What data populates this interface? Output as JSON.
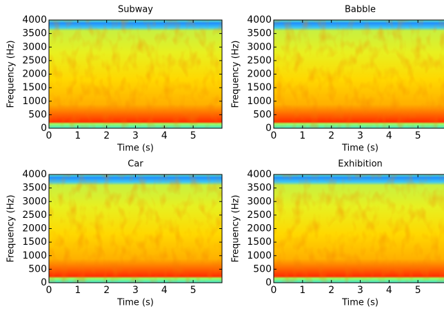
{
  "chart_data": [
    {
      "type": "spectrogram",
      "title": "Subway",
      "x_label": "Time (s)",
      "y_label": "Frequency (Hz)",
      "xlim": [
        0,
        6
      ],
      "ylim": [
        0,
        4000
      ],
      "xticks": [
        0,
        1,
        2,
        3,
        4,
        5
      ],
      "yticks": [
        0,
        500,
        1000,
        1500,
        2000,
        2500,
        3000,
        3500,
        4000
      ]
    },
    {
      "type": "spectrogram",
      "title": "Babble",
      "x_label": "Time (s)",
      "y_label": "Frequency (Hz)",
      "xlim": [
        0,
        6
      ],
      "ylim": [
        0,
        4000
      ],
      "xticks": [
        0,
        1,
        2,
        3,
        4,
        5
      ],
      "yticks": [
        0,
        500,
        1000,
        1500,
        2000,
        2500,
        3000,
        3500,
        4000
      ]
    },
    {
      "type": "spectrogram",
      "title": "Car",
      "x_label": "Time (s)",
      "y_label": "Frequency (Hz)",
      "xlim": [
        0,
        6
      ],
      "ylim": [
        0,
        4000
      ],
      "xticks": [
        0,
        1,
        2,
        3,
        4,
        5
      ],
      "yticks": [
        0,
        500,
        1000,
        1500,
        2000,
        2500,
        3000,
        3500,
        4000
      ]
    },
    {
      "type": "spectrogram",
      "title": "Exhibition",
      "x_label": "Time (s)",
      "y_label": "Frequency (Hz)",
      "xlim": [
        0,
        6
      ],
      "ylim": [
        0,
        4000
      ],
      "xticks": [
        0,
        1,
        2,
        3,
        4,
        5
      ],
      "yticks": [
        0,
        500,
        1000,
        1500,
        2000,
        2500,
        3000,
        3500,
        4000
      ]
    }
  ]
}
